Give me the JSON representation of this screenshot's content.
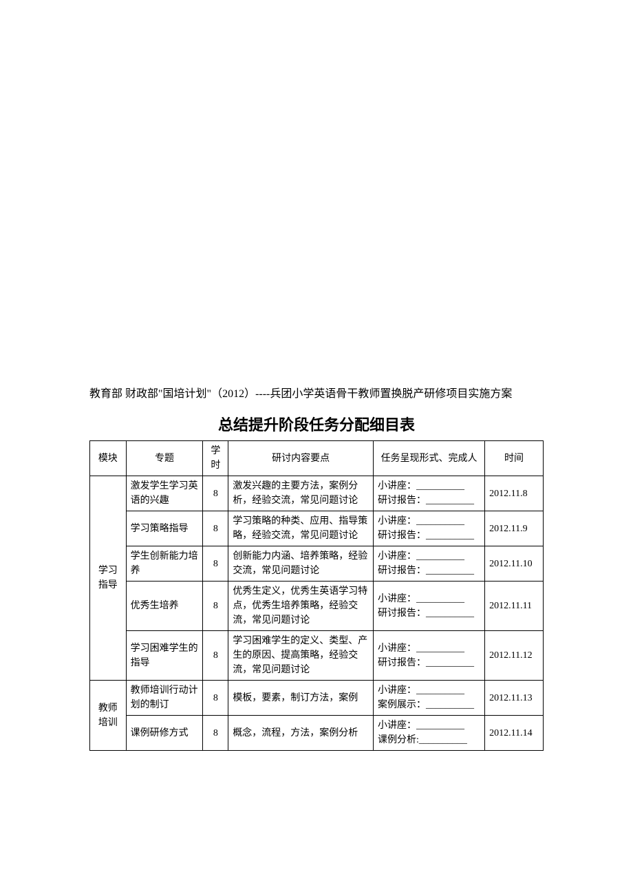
{
  "intro_text": "教育部 财政部\"国培计划\"（2012）----兵团小学英语骨干教师置换脱产研修项目实施方案",
  "title": "总结提升阶段任务分配细目表",
  "headers": {
    "module": "模块",
    "topic": "专题",
    "hours": "学时",
    "content": "研讨内容要点",
    "form": "任务呈现形式、完成人",
    "time": "时间"
  },
  "modules": [
    {
      "name": "学习指导",
      "rows": [
        {
          "topic": "激发学生学习英语的兴趣",
          "hours": "8",
          "content": "激发兴趣的主要方法，案例分析，经验交流，常见问题讨论",
          "form": "小讲座：__________\n研讨报告：__________",
          "time": "2012.11.8"
        },
        {
          "topic": "学习策略指导",
          "hours": "8",
          "content": "学习策略的种类、应用、指导策略，经验交流，常见问题讨论",
          "form": "小讲座：__________\n研讨报告：__________",
          "time": "2012.11.9"
        },
        {
          "topic": "学生创新能力培养",
          "hours": "8",
          "content": "创新能力内涵、培养策略，经验交流，常见问题讨论",
          "form": "小讲座：__________\n研讨报告：__________",
          "time": "2012.11.10"
        },
        {
          "topic": "优秀生培养",
          "hours": "8",
          "content": "优秀生定义，优秀生英语学习特点，优秀生培养策略，经验交流，常见问题讨论",
          "form": "小讲座：__________\n研讨报告：__________",
          "time": "2012.11.11"
        },
        {
          "topic": "学习困难学生的指导",
          "hours": "8",
          "content": "学习困难学生的定义、类型、产生的原因、提高策略，经验交流，常见问题讨论",
          "form": "小讲座：__________\n研讨报告：__________",
          "time": "2012.11.12"
        }
      ]
    },
    {
      "name": "教师培训",
      "rows": [
        {
          "topic": "教师培训行动计划的制订",
          "hours": "8",
          "content": "模板，要素，制订方法，案例",
          "form": "小讲座：__________\n案例展示：__________",
          "time": "2012.11.13"
        },
        {
          "topic": "课例研修方式",
          "hours": "8",
          "content": "概念，流程，方法，案例分析",
          "form": "小讲座：__________\n课例分析:__________",
          "time": "2012.11.14"
        }
      ]
    }
  ]
}
